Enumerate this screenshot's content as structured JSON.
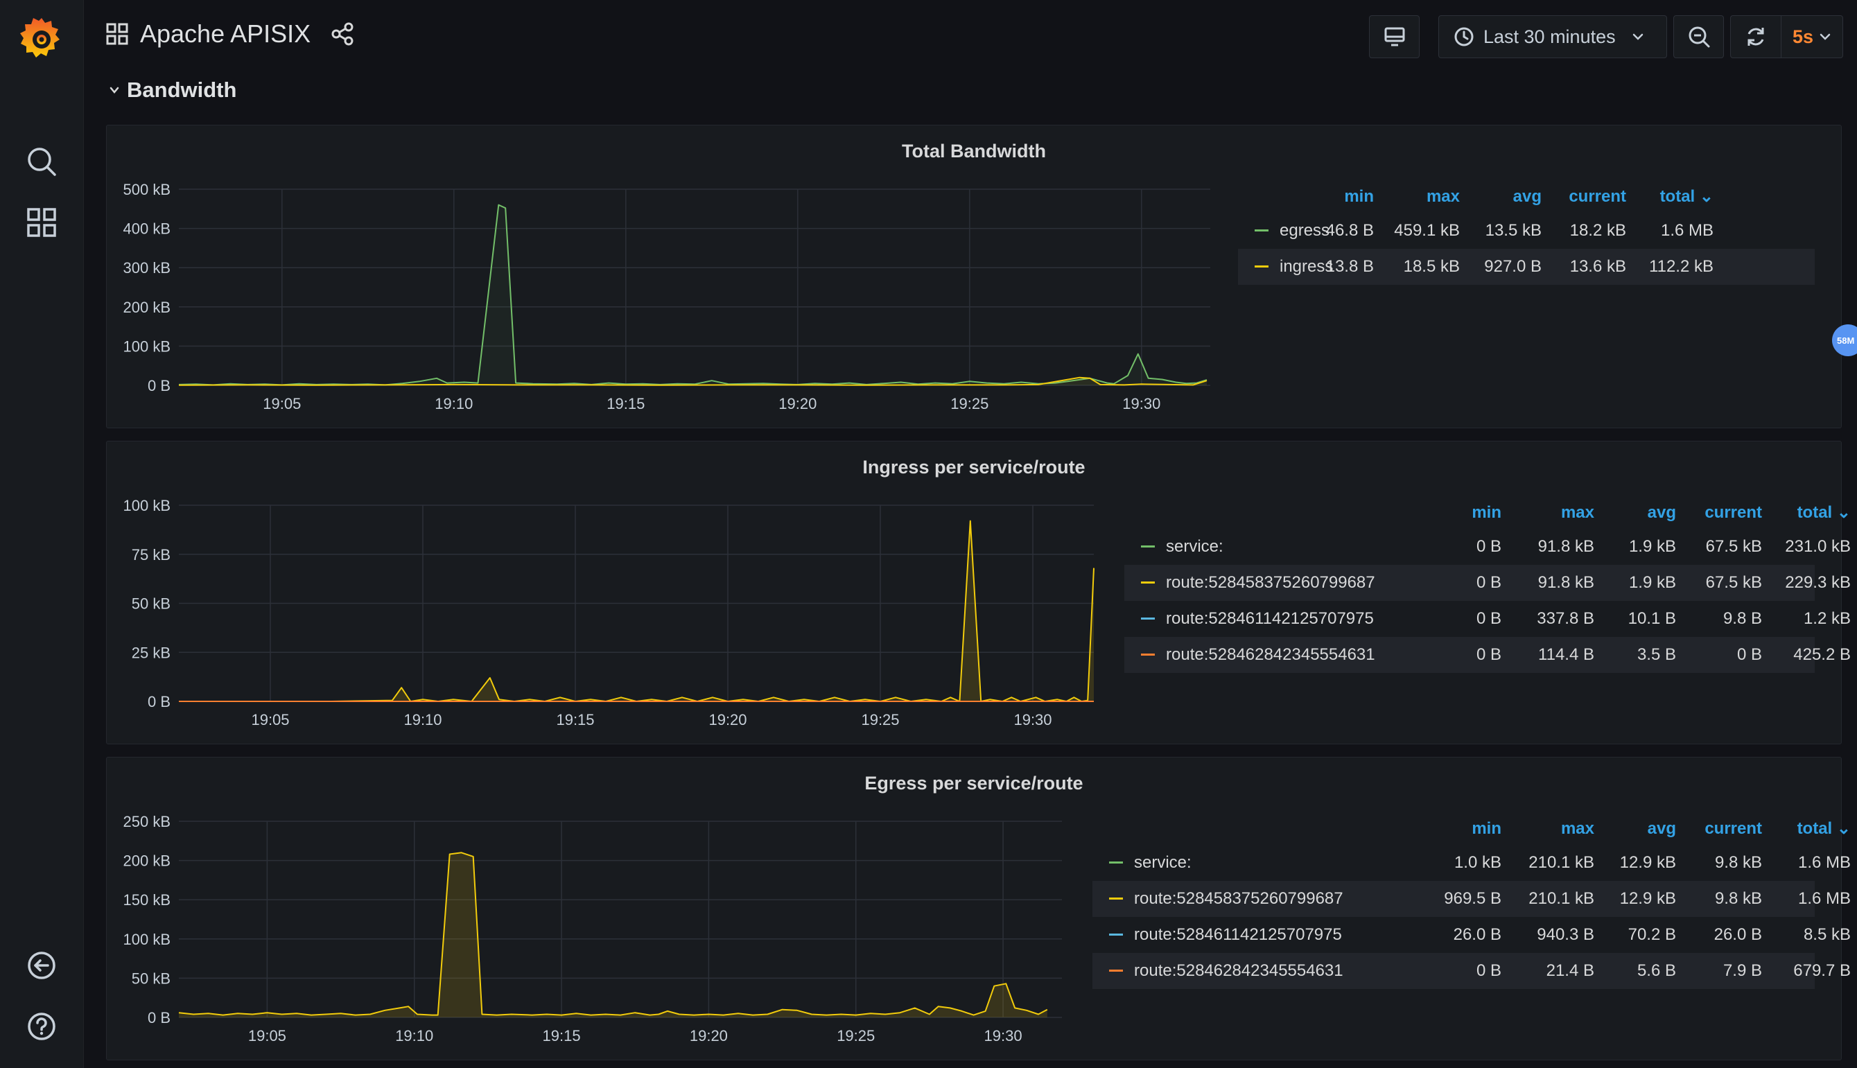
{
  "app": {
    "title": "Apache APISIX"
  },
  "toolbar": {
    "time_range": "Last 30 minutes",
    "refresh_interval": "5s"
  },
  "row": {
    "title": "Bandwidth"
  },
  "bubble": {
    "label": "58M"
  },
  "colors": {
    "green": "#73bf69",
    "yellow": "#f2cc0c",
    "blue": "#5ab8e0",
    "orange": "#ff7f30",
    "accent": "#33a2e5"
  },
  "legend_headers": [
    "min",
    "max",
    "avg",
    "current",
    "total"
  ],
  "panels": [
    {
      "title": "Total Bandwidth",
      "legend": [
        {
          "name": "egress",
          "color": "#73bf69",
          "min": "46.8 B",
          "max": "459.1 kB",
          "avg": "13.5 kB",
          "current": "18.2 kB",
          "total": "1.6 MB"
        },
        {
          "name": "ingress",
          "color": "#f2cc0c",
          "min": "13.8 B",
          "max": "18.5 kB",
          "avg": "927.0 B",
          "current": "13.6 kB",
          "total": "112.2 kB"
        }
      ]
    },
    {
      "title": "Ingress per service/route",
      "legend": [
        {
          "name": "service:",
          "color": "#73bf69",
          "min": "0 B",
          "max": "91.8 kB",
          "avg": "1.9 kB",
          "current": "67.5 kB",
          "total": "231.0 kB"
        },
        {
          "name": "route:528458375260799687",
          "color": "#f2cc0c",
          "min": "0 B",
          "max": "91.8 kB",
          "avg": "1.9 kB",
          "current": "67.5 kB",
          "total": "229.3 kB"
        },
        {
          "name": "route:528461142125707975",
          "color": "#5ab8e0",
          "min": "0 B",
          "max": "337.8 B",
          "avg": "10.1 B",
          "current": "9.8 B",
          "total": "1.2 kB"
        },
        {
          "name": "route:528462842345554631",
          "color": "#ff7f30",
          "min": "0 B",
          "max": "114.4 B",
          "avg": "3.5 B",
          "current": "0 B",
          "total": "425.2 B"
        }
      ]
    },
    {
      "title": "Egress per service/route",
      "legend": [
        {
          "name": "service:",
          "color": "#73bf69",
          "min": "1.0 kB",
          "max": "210.1 kB",
          "avg": "12.9 kB",
          "current": "9.8 kB",
          "total": "1.6 MB"
        },
        {
          "name": "route:528458375260799687",
          "color": "#f2cc0c",
          "min": "969.5 B",
          "max": "210.1 kB",
          "avg": "12.9 kB",
          "current": "9.8 kB",
          "total": "1.6 MB"
        },
        {
          "name": "route:528461142125707975",
          "color": "#5ab8e0",
          "min": "26.0 B",
          "max": "940.3 B",
          "avg": "70.2 B",
          "current": "26.0 B",
          "total": "8.5 kB"
        },
        {
          "name": "route:528462842345554631",
          "color": "#ff7f30",
          "min": "0 B",
          "max": "21.4 B",
          "avg": "5.6 B",
          "current": "7.9 B",
          "total": "679.7 B"
        }
      ]
    }
  ],
  "chart_data": [
    {
      "type": "line",
      "title": "Total Bandwidth",
      "x_ticks": [
        "19:05",
        "19:10",
        "19:15",
        "19:20",
        "19:25",
        "19:30"
      ],
      "y_ticks": [
        "0 B",
        "100 kB",
        "200 kB",
        "300 kB",
        "400 kB",
        "500 kB"
      ],
      "ylim": [
        0,
        500
      ],
      "y_unit": "kB",
      "x_range": [
        "19:02",
        "19:32"
      ],
      "series": [
        {
          "name": "egress",
          "color": "#73bf69",
          "fill": false,
          "points": [
            [
              0,
              2
            ],
            [
              0.5,
              3
            ],
            [
              1,
              1
            ],
            [
              1.5,
              4
            ],
            [
              2,
              2
            ],
            [
              2.5,
              3
            ],
            [
              3,
              1
            ],
            [
              3.5,
              4
            ],
            [
              4,
              2
            ],
            [
              4.5,
              3
            ],
            [
              5,
              2
            ],
            [
              5.5,
              3
            ],
            [
              6,
              1
            ],
            [
              6.5,
              5
            ],
            [
              7,
              10
            ],
            [
              7.5,
              18
            ],
            [
              7.8,
              6
            ],
            [
              8.3,
              8
            ],
            [
              8.7,
              6
            ],
            [
              9.3,
              460
            ],
            [
              9.5,
              452
            ],
            [
              9.8,
              6
            ],
            [
              10.3,
              4
            ],
            [
              11,
              3
            ],
            [
              11.5,
              5
            ],
            [
              12,
              2
            ],
            [
              12.5,
              6
            ],
            [
              13,
              3
            ],
            [
              13.5,
              4
            ],
            [
              14,
              2
            ],
            [
              14.5,
              4
            ],
            [
              15,
              3
            ],
            [
              15.5,
              12
            ],
            [
              16,
              3
            ],
            [
              16.5,
              4
            ],
            [
              17,
              5
            ],
            [
              17.5,
              3
            ],
            [
              18,
              2
            ],
            [
              18.5,
              5
            ],
            [
              19,
              3
            ],
            [
              19.5,
              6
            ],
            [
              20,
              2
            ],
            [
              20.5,
              5
            ],
            [
              21,
              8
            ],
            [
              21.5,
              3
            ],
            [
              22,
              6
            ],
            [
              22.5,
              4
            ],
            [
              23,
              10
            ],
            [
              23.5,
              6
            ],
            [
              24,
              4
            ],
            [
              24.5,
              8
            ],
            [
              25,
              4
            ],
            [
              25.5,
              6
            ],
            [
              26,
              12
            ],
            [
              26.5,
              18
            ],
            [
              27,
              6
            ],
            [
              27.2,
              4
            ],
            [
              27.6,
              25
            ],
            [
              27.9,
              80
            ],
            [
              28.2,
              18
            ],
            [
              28.6,
              15
            ],
            [
              29,
              8
            ],
            [
              29.3,
              5
            ],
            [
              29.6,
              6
            ],
            [
              29.9,
              14
            ]
          ]
        },
        {
          "name": "ingress",
          "color": "#f2cc0c",
          "fill": false,
          "points": [
            [
              0,
              0.5
            ],
            [
              2,
              1
            ],
            [
              4,
              0.5
            ],
            [
              6,
              1
            ],
            [
              8,
              2
            ],
            [
              10,
              1
            ],
            [
              12,
              1
            ],
            [
              14,
              0.5
            ],
            [
              16,
              1
            ],
            [
              18,
              1
            ],
            [
              20,
              0.5
            ],
            [
              22,
              1
            ],
            [
              24,
              1
            ],
            [
              25,
              2
            ],
            [
              26.2,
              20
            ],
            [
              26.5,
              18
            ],
            [
              26.8,
              2
            ],
            [
              27.5,
              1
            ],
            [
              28,
              3
            ],
            [
              28.8,
              2
            ],
            [
              29.5,
              1
            ],
            [
              29.9,
              12
            ]
          ]
        }
      ]
    },
    {
      "type": "line",
      "title": "Ingress per service/route",
      "x_ticks": [
        "19:05",
        "19:10",
        "19:15",
        "19:20",
        "19:25",
        "19:30"
      ],
      "y_ticks": [
        "0 B",
        "25 kB",
        "50 kB",
        "75 kB",
        "100 kB"
      ],
      "ylim": [
        0,
        100
      ],
      "y_unit": "kB",
      "x_range": [
        "19:02",
        "19:32"
      ],
      "series": [
        {
          "name": "route:528458375260799687",
          "color": "#f2cc0c",
          "fill": true,
          "points": [
            [
              0,
              0
            ],
            [
              5,
              0
            ],
            [
              7,
              0.5
            ],
            [
              7.3,
              7
            ],
            [
              7.6,
              0
            ],
            [
              8,
              1
            ],
            [
              8.5,
              0
            ],
            [
              9,
              1
            ],
            [
              9.6,
              0
            ],
            [
              10.2,
              12
            ],
            [
              10.5,
              1
            ],
            [
              11,
              0
            ],
            [
              11.5,
              1
            ],
            [
              12,
              0
            ],
            [
              12.5,
              2
            ],
            [
              13,
              0
            ],
            [
              13.5,
              1
            ],
            [
              14,
              0
            ],
            [
              14.5,
              2
            ],
            [
              15,
              0
            ],
            [
              15.5,
              1
            ],
            [
              16,
              0
            ],
            [
              16.5,
              2
            ],
            [
              17,
              0
            ],
            [
              17.5,
              2
            ],
            [
              18,
              0
            ],
            [
              18.5,
              1
            ],
            [
              19,
              0
            ],
            [
              19.5,
              2
            ],
            [
              20,
              0
            ],
            [
              20.5,
              1
            ],
            [
              21,
              0
            ],
            [
              21.5,
              2
            ],
            [
              22,
              0
            ],
            [
              22.5,
              1
            ],
            [
              23,
              0
            ],
            [
              23.5,
              2
            ],
            [
              24,
              0
            ],
            [
              24.5,
              1
            ],
            [
              25,
              0
            ],
            [
              25.3,
              2
            ],
            [
              25.6,
              0
            ],
            [
              25.95,
              92
            ],
            [
              26.3,
              0
            ],
            [
              26.6,
              1
            ],
            [
              27,
              0
            ],
            [
              27.3,
              2
            ],
            [
              27.6,
              0
            ],
            [
              28.1,
              2
            ],
            [
              28.4,
              0
            ],
            [
              28.8,
              1
            ],
            [
              29.1,
              0
            ],
            [
              29.35,
              2
            ],
            [
              29.6,
              0
            ],
            [
              29.8,
              0.5
            ],
            [
              30,
              68
            ]
          ]
        },
        {
          "name": "route:528462842345554631",
          "color": "#ff7f30",
          "fill": false,
          "points": [
            [
              0,
              0
            ],
            [
              10,
              0
            ],
            [
              20,
              0
            ],
            [
              30,
              0
            ]
          ]
        }
      ]
    },
    {
      "type": "line",
      "title": "Egress per service/route",
      "x_ticks": [
        "19:05",
        "19:10",
        "19:15",
        "19:20",
        "19:25",
        "19:30"
      ],
      "y_ticks": [
        "0 B",
        "50 kB",
        "100 kB",
        "150 kB",
        "200 kB",
        "250 kB"
      ],
      "ylim": [
        0,
        250
      ],
      "y_unit": "kB",
      "x_range": [
        "19:02",
        "19:32"
      ],
      "series": [
        {
          "name": "route:528458375260799687",
          "color": "#f2cc0c",
          "fill": true,
          "points": [
            [
              0,
              6
            ],
            [
              0.5,
              4
            ],
            [
              1,
              5
            ],
            [
              1.5,
              3
            ],
            [
              2,
              5
            ],
            [
              2.5,
              4
            ],
            [
              3,
              6
            ],
            [
              3.5,
              4
            ],
            [
              4,
              5
            ],
            [
              4.5,
              3
            ],
            [
              5,
              4
            ],
            [
              5.5,
              5
            ],
            [
              6,
              3
            ],
            [
              6.5,
              4
            ],
            [
              7,
              9
            ],
            [
              7.5,
              12
            ],
            [
              7.8,
              14
            ],
            [
              8.1,
              4
            ],
            [
              8.6,
              3
            ],
            [
              8.8,
              3
            ],
            [
              9.2,
              208
            ],
            [
              9.6,
              210
            ],
            [
              10,
              205
            ],
            [
              10.3,
              4
            ],
            [
              10.8,
              3
            ],
            [
              11.3,
              4
            ],
            [
              12,
              3
            ],
            [
              12.5,
              4
            ],
            [
              13,
              3
            ],
            [
              13.5,
              5
            ],
            [
              14,
              3
            ],
            [
              14.5,
              4
            ],
            [
              15,
              3
            ],
            [
              15.5,
              6
            ],
            [
              16,
              3
            ],
            [
              16.3,
              4
            ],
            [
              16.6,
              8
            ],
            [
              17,
              4
            ],
            [
              17.5,
              3
            ],
            [
              18,
              4
            ],
            [
              18.5,
              3
            ],
            [
              19,
              5
            ],
            [
              19.5,
              3
            ],
            [
              20,
              4
            ],
            [
              20.5,
              10
            ],
            [
              21,
              9
            ],
            [
              21.5,
              4
            ],
            [
              22,
              3
            ],
            [
              22.5,
              4
            ],
            [
              23,
              3
            ],
            [
              23.5,
              5
            ],
            [
              24,
              4
            ],
            [
              24.5,
              6
            ],
            [
              25,
              12
            ],
            [
              25.5,
              4
            ],
            [
              25.8,
              14
            ],
            [
              26.2,
              12
            ],
            [
              26.6,
              8
            ],
            [
              27,
              3
            ],
            [
              27.4,
              8
            ],
            [
              27.7,
              40
            ],
            [
              28.1,
              43
            ],
            [
              28.4,
              12
            ],
            [
              28.8,
              9
            ],
            [
              29.2,
              4
            ],
            [
              29.5,
              10
            ]
          ]
        }
      ]
    }
  ]
}
